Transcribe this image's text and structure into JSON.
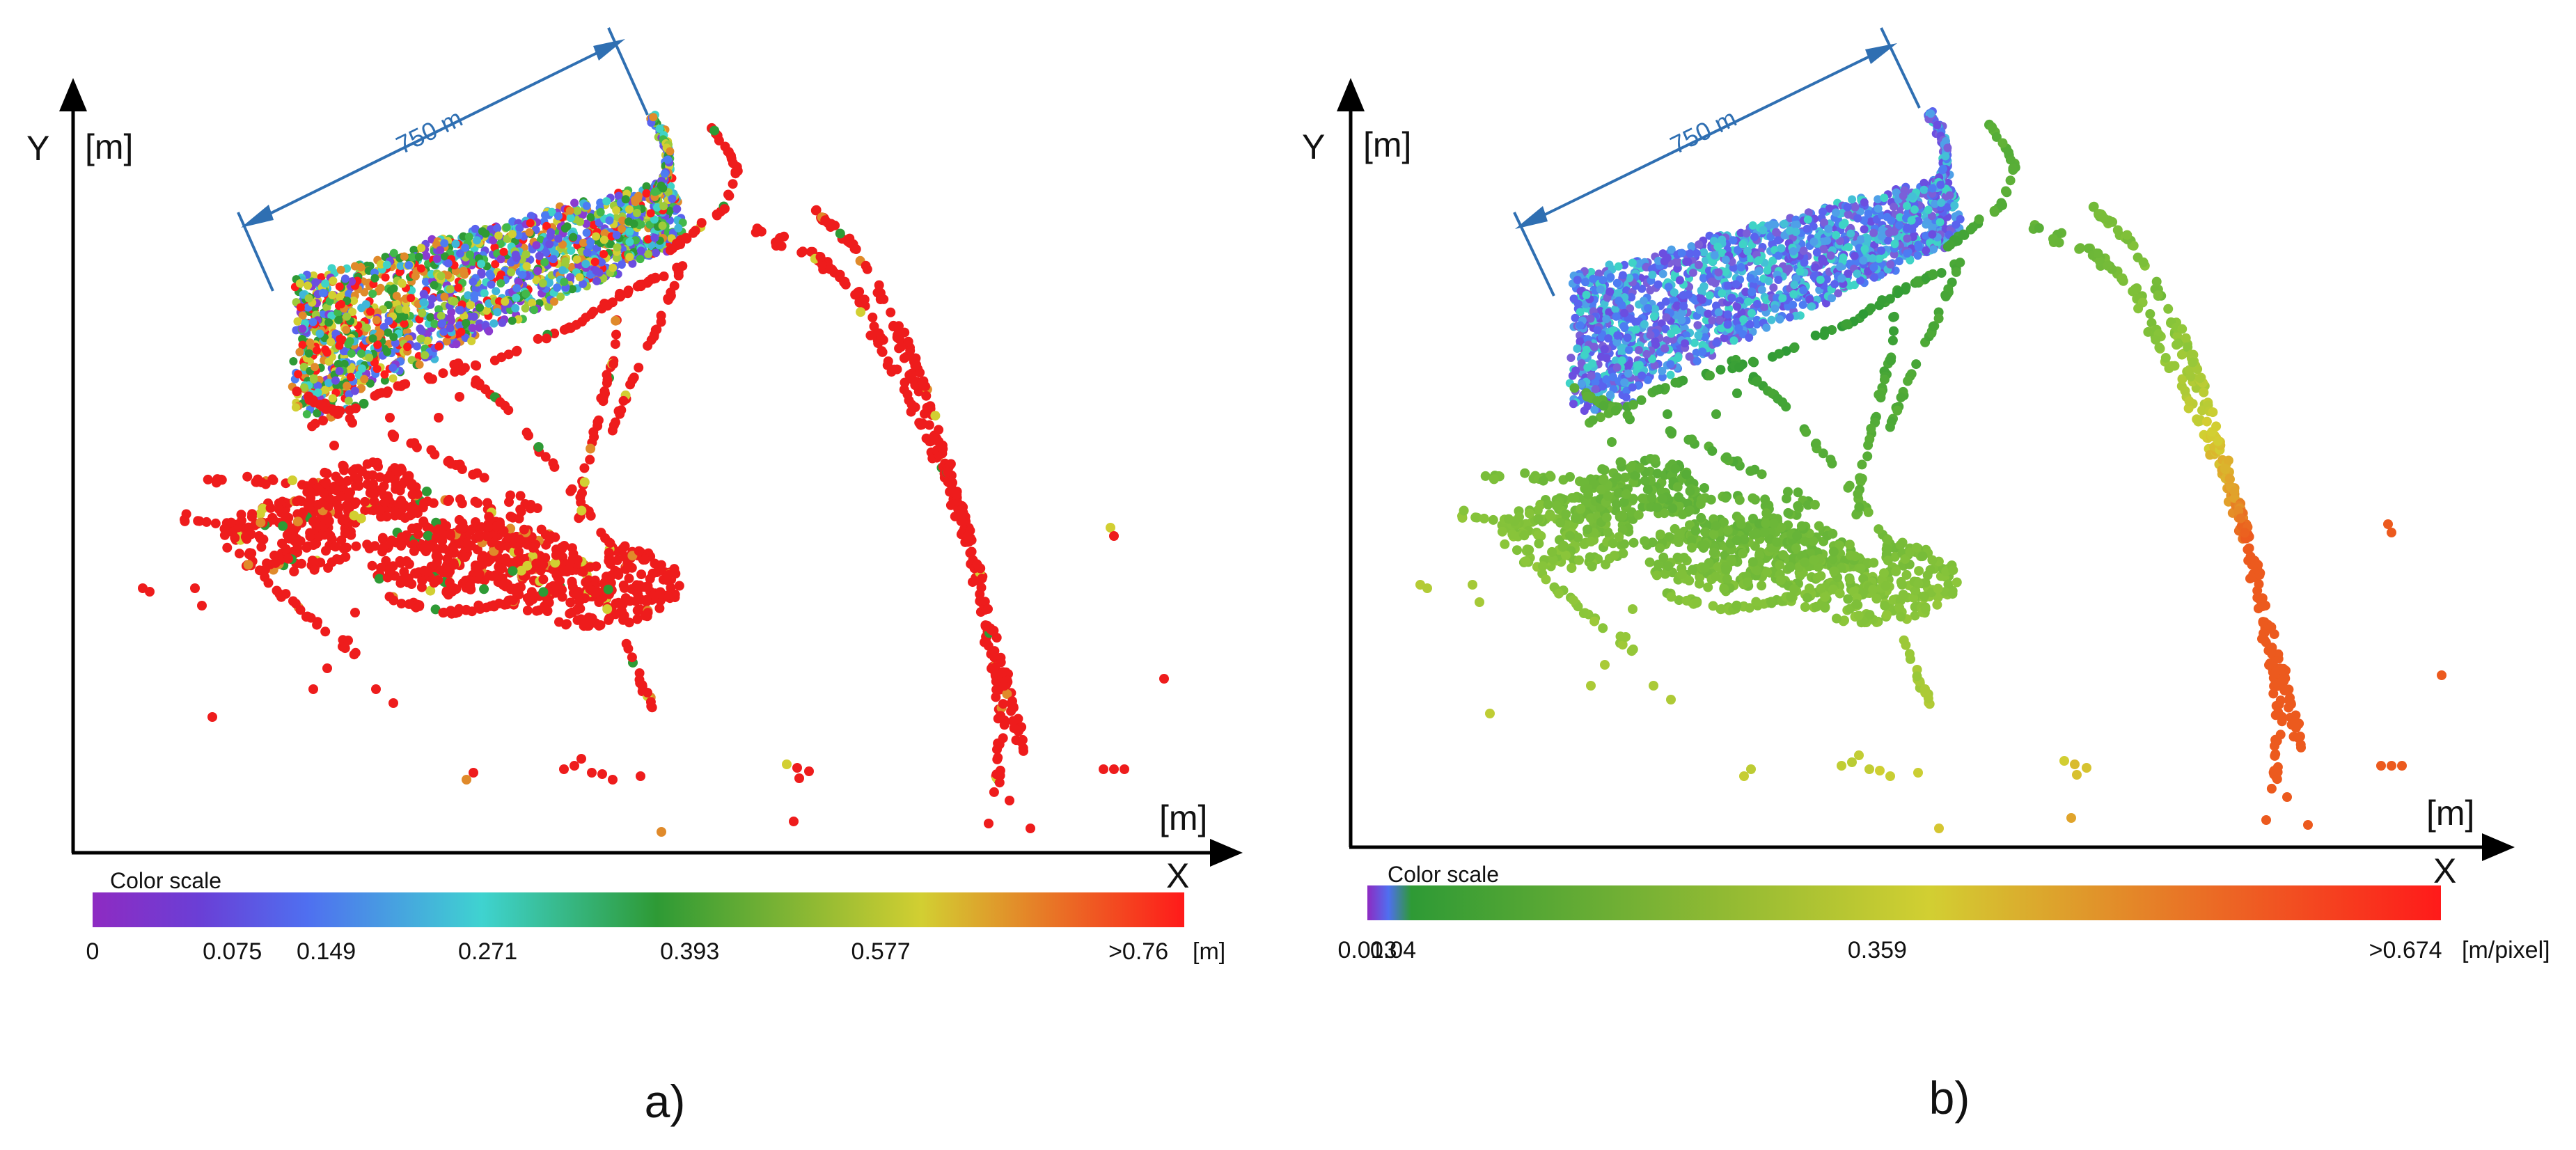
{
  "chart_data": [
    {
      "type": "scatter",
      "panel_label": "a)",
      "y_axis_letter": "Y",
      "y_axis_unit": "[m]",
      "x_axis_letter": "X",
      "x_axis_unit": "[m]",
      "dimension_label": "750 m",
      "color_scale": {
        "title": "Color scale",
        "unit": "[m]",
        "ticks": [
          "0",
          "0.075",
          "0.149",
          "0.271",
          "0.393",
          "0.577",
          ">0.76"
        ],
        "stops": [
          {
            "value": 0,
            "color": "#8e2bc2"
          },
          {
            "value": 0.075,
            "color": "#6a3fd6"
          },
          {
            "value": 0.149,
            "color": "#4f6ff0"
          },
          {
            "value": 0.271,
            "color": "#3fd3d0"
          },
          {
            "value": 0.393,
            "color": "#2e9a35"
          },
          {
            "value": 0.577,
            "color": "#d2cf32"
          },
          {
            "value": 0.76,
            "color": "#ff1a1a"
          }
        ]
      },
      "grid": false,
      "legend": "bottom"
    },
    {
      "type": "scatter",
      "panel_label": "b)",
      "y_axis_letter": "Y",
      "y_axis_unit": "[m]",
      "x_axis_letter": "X",
      "x_axis_unit": "[m]",
      "dimension_label": "750 m",
      "color_scale": {
        "title": "Color scale",
        "unit": "[m/pixel]",
        "ticks": [
          "0.013",
          "0.04",
          "0.359",
          ">0.674"
        ],
        "stops": [
          {
            "value": 0.013,
            "color": "#8e2bc2"
          },
          {
            "value": 0.026,
            "color": "#4f6ff0"
          },
          {
            "value": 0.04,
            "color": "#2e9a35"
          },
          {
            "value": 0.359,
            "color": "#d2cf32"
          },
          {
            "value": 0.674,
            "color": "#ff1a1a"
          }
        ]
      },
      "grid": false,
      "legend": "bottom"
    }
  ]
}
